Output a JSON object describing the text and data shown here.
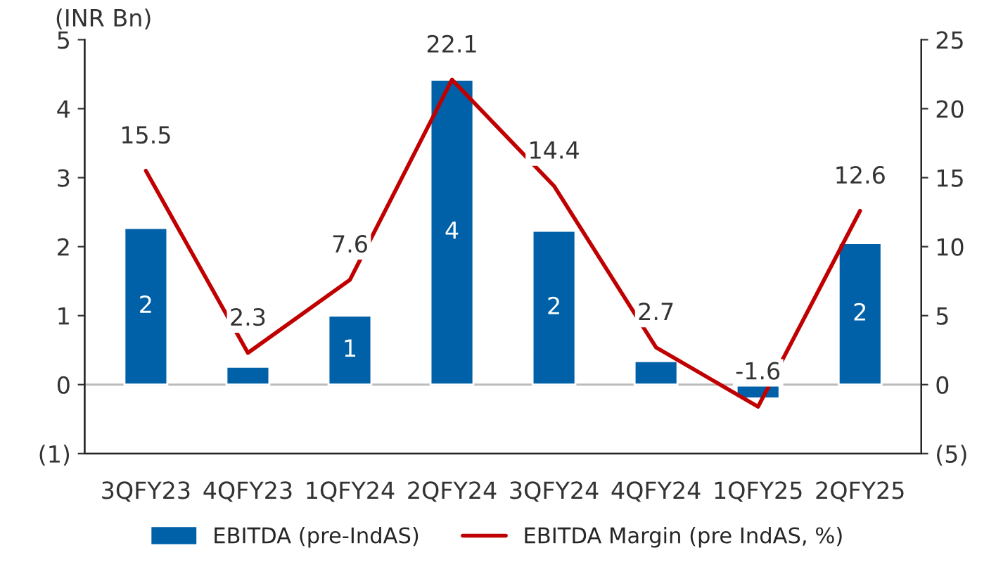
{
  "chart_data": {
    "type": "bar",
    "categories": [
      "3QFY23",
      "4QFY23",
      "1QFY24",
      "2QFY24",
      "3QFY24",
      "4QFY24",
      "1QFY25",
      "2QFY25"
    ],
    "series": [
      {
        "name": "EBITDA (pre-IndAS)",
        "color": "#0061a8",
        "values": [
          2.27,
          0.26,
          1.0,
          4.42,
          2.23,
          0.34,
          -0.2,
          2.05
        ],
        "value_labels": [
          "2",
          null,
          "1",
          "4",
          "2",
          null,
          null,
          "2"
        ]
      },
      {
        "name": "EBITDA Margin (pre IndAS, %)",
        "type": "line",
        "axis": "y2",
        "color": "#c00000",
        "values": [
          15.5,
          2.3,
          7.6,
          22.1,
          14.4,
          2.7,
          -1.6,
          12.6
        ],
        "data_labels": true
      }
    ],
    "ylim": [
      -1,
      5
    ],
    "yticks": [
      {
        "value": -1,
        "label": "(1)"
      },
      0,
      1,
      2,
      3,
      4,
      5
    ],
    "y2lim": [
      -5,
      25
    ],
    "y2ticks": [
      {
        "value": -5,
        "label": "(5)"
      },
      0,
      5,
      10,
      15,
      20,
      25
    ],
    "ref_lines": [
      {
        "axis": "y",
        "value": 0,
        "color": "#bbbbbb"
      }
    ],
    "annotations": [
      "(INR Bn)"
    ],
    "legend": "bottom",
    "grid": false,
    "marker": "none",
    "line_style": "solid"
  }
}
